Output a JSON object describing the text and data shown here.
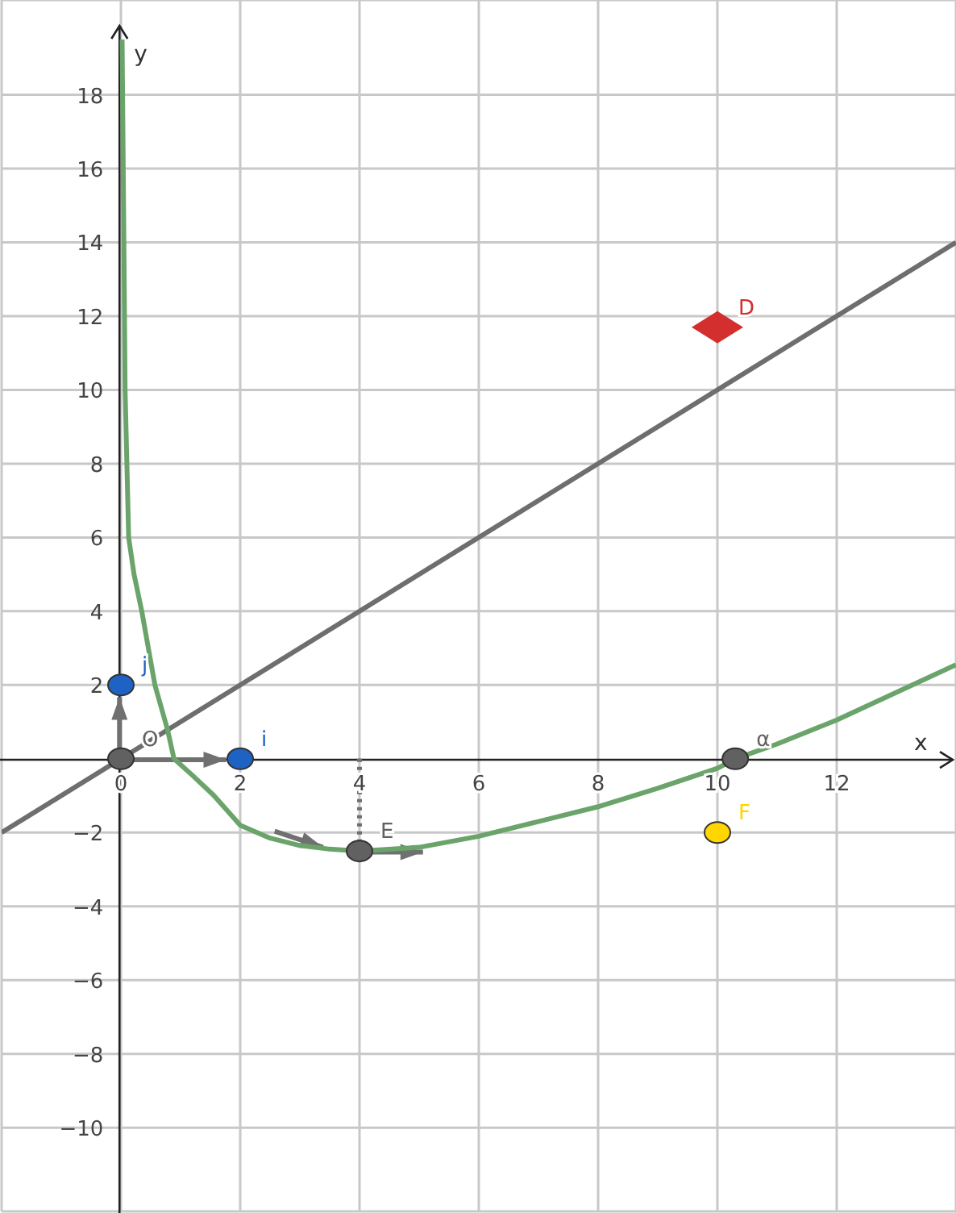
{
  "chart_data": {
    "type": "line",
    "xlabel": "x",
    "ylabel": "y",
    "xlim": [
      -2,
      14
    ],
    "ylim": [
      -12.27,
      20.57
    ],
    "xticks": [
      0,
      2,
      4,
      6,
      8,
      10,
      12
    ],
    "yticks": [
      -10,
      -8,
      -6,
      -4,
      -2,
      2,
      4,
      6,
      8,
      10,
      12,
      14,
      16,
      18
    ],
    "grid": true,
    "marker": "none",
    "line_style": "solid",
    "series": [
      {
        "color": "#6e6e6e",
        "x": [
          -2,
          14
        ],
        "values": [
          -2,
          14
        ]
      },
      {
        "color": "#6aa46a",
        "x": [
          0.02,
          0.05,
          0.07,
          0.1,
          0.13,
          0.22,
          0.35,
          0.57,
          0.78,
          0.89,
          1.2,
          1.56,
          2,
          2.5,
          3,
          3.5,
          4,
          5,
          6,
          7,
          8,
          9,
          10,
          10.3,
          11,
          12,
          13,
          14
        ],
        "values": [
          19.5,
          14,
          10,
          8,
          6,
          5,
          4,
          2,
          0.8,
          0,
          -0.45,
          -1,
          -1.8,
          -2.15,
          -2.35,
          -2.45,
          -2.5,
          -2.4,
          -2.1,
          -1.7,
          -1.3,
          -0.8,
          -0.26,
          0,
          0.4,
          1.05,
          1.8,
          2.55
        ]
      },
      {
        "color": "#707070",
        "x": [
          4,
          4
        ],
        "values": [
          0,
          -2.5
        ],
        "line_style": "dotted"
      },
      {
        "type": "scatter",
        "name": "O",
        "color": "#616161",
        "marker": "circle",
        "x": [
          0
        ],
        "values": [
          0
        ]
      },
      {
        "type": "scatter",
        "name": "j",
        "color": "#1e63c4",
        "marker": "circle",
        "x": [
          0
        ],
        "values": [
          2
        ]
      },
      {
        "type": "scatter",
        "name": "i",
        "color": "#1e63c4",
        "marker": "circle",
        "x": [
          2
        ],
        "values": [
          0
        ]
      },
      {
        "type": "scatter",
        "name": "E",
        "color": "#616161",
        "marker": "circle",
        "x": [
          4
        ],
        "values": [
          -2.5
        ]
      },
      {
        "type": "scatter",
        "name": "α",
        "color": "#616161",
        "marker": "circle",
        "x": [
          10.3
        ],
        "values": [
          0
        ]
      },
      {
        "type": "scatter",
        "name": "D",
        "color": "#d32f2f",
        "marker": "diamond",
        "x": [
          10
        ],
        "values": [
          11.7
        ]
      },
      {
        "type": "scatter",
        "name": "F",
        "color": "#ffd600",
        "marker": "circle",
        "x": [
          10
        ],
        "values": [
          -2
        ]
      }
    ]
  }
}
